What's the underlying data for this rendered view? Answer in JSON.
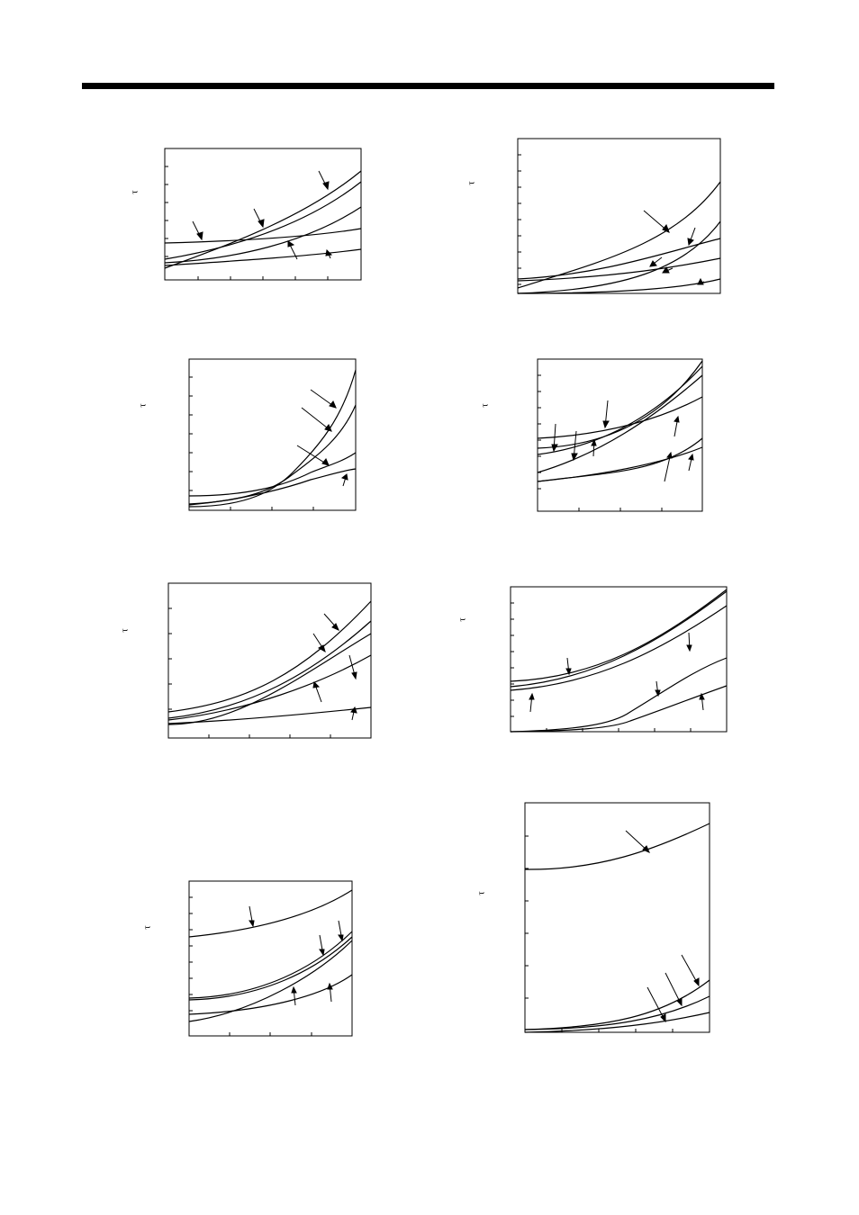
{
  "page": {
    "header_rule": true
  },
  "panels": [
    {
      "id": "p1",
      "y_axis_label": "τ",
      "curves": [
        [
          1,
          1
        ],
        [
          1,
          1
        ],
        [
          1,
          1
        ],
        [
          1,
          1
        ],
        [
          1,
          1
        ]
      ]
    },
    {
      "id": "p2",
      "y_axis_label": "τ",
      "curves": [
        [
          1,
          1
        ],
        [
          1,
          1
        ],
        [
          1,
          1
        ],
        [
          1,
          1
        ],
        [
          1,
          1
        ]
      ]
    },
    {
      "id": "p3",
      "y_axis_label": "τ",
      "curves": [
        [
          1,
          1
        ],
        [
          1,
          1
        ],
        [
          1,
          1
        ],
        [
          1,
          1
        ]
      ]
    },
    {
      "id": "p4",
      "y_axis_label": "τ",
      "curves": [
        [
          1,
          1
        ],
        [
          1,
          1
        ],
        [
          1,
          1
        ],
        [
          1,
          1
        ],
        [
          1,
          1
        ],
        [
          1,
          1
        ]
      ]
    },
    {
      "id": "p5",
      "y_axis_label": "τ",
      "curves": [
        [
          1,
          1
        ],
        [
          1,
          1
        ],
        [
          1,
          1
        ],
        [
          1,
          1
        ]
      ]
    },
    {
      "id": "p6",
      "y_axis_label": "τ",
      "curves": [
        [
          1,
          1
        ],
        [
          1,
          1
        ],
        [
          1,
          1
        ],
        [
          1,
          1
        ],
        [
          1,
          1
        ]
      ]
    },
    {
      "id": "p7",
      "y_axis_label": "τ",
      "curves": [
        [
          1,
          1
        ],
        [
          1,
          1
        ],
        [
          1,
          1
        ],
        [
          1,
          1
        ]
      ]
    },
    {
      "id": "p8",
      "y_axis_label": "τ",
      "curves": [
        [
          1,
          1
        ],
        [
          1,
          1
        ],
        [
          1,
          1
        ],
        [
          1,
          1
        ]
      ]
    }
  ]
}
